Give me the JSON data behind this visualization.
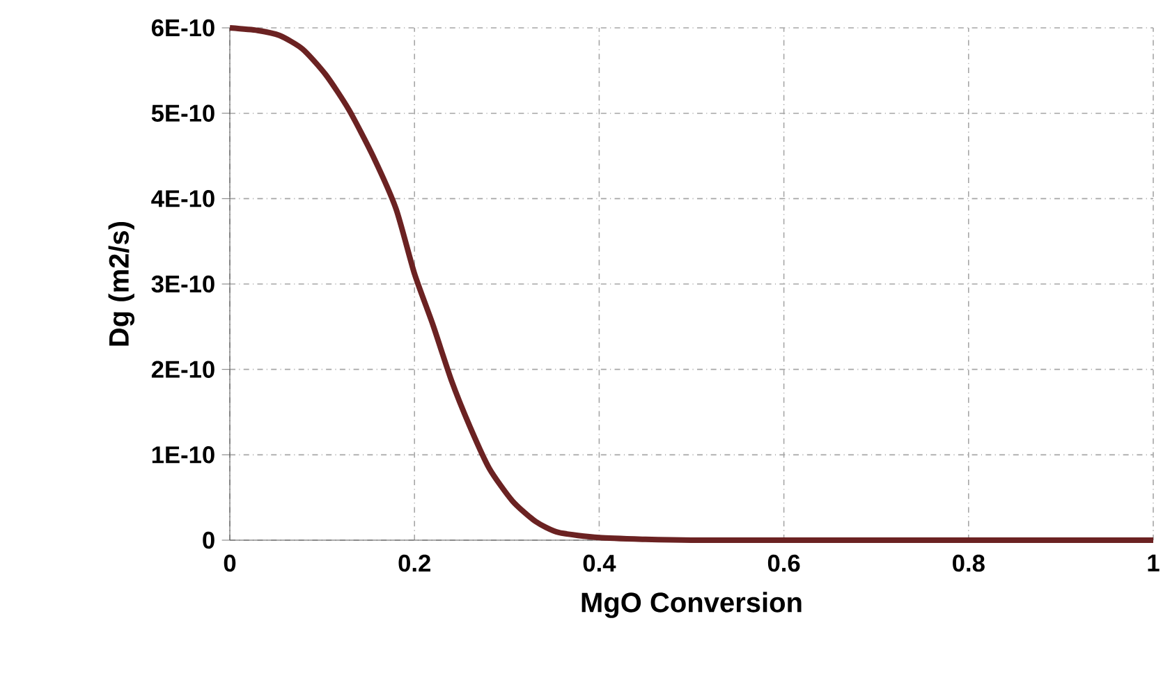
{
  "chart_data": {
    "type": "line",
    "xlabel": "MgO Conversion",
    "ylabel": "Dg (m2/s)",
    "series": [
      {
        "color": "#6b2222",
        "x": [
          0,
          0.03,
          0.054,
          0.079,
          0.104,
          0.129,
          0.155,
          0.18,
          0.2,
          0.22,
          0.24,
          0.26,
          0.281,
          0.306,
          0.331,
          0.356,
          0.4,
          0.45,
          0.5,
          0.6,
          0.8,
          1.0
        ],
        "values": [
          6e-10,
          5.97e-10,
          5.91e-10,
          5.75e-10,
          5.45e-10,
          5.04e-10,
          4.5e-10,
          3.88e-10,
          3.12e-10,
          2.52e-10,
          1.87e-10,
          1.33e-10,
          8.4e-11,
          4.6e-11,
          2.2e-11,
          9e-12,
          3e-12,
          1e-12,
          0,
          0,
          0,
          0
        ]
      }
    ],
    "xlim": [
      0,
      1
    ],
    "xticks": [
      0,
      0.2,
      0.4,
      0.6,
      0.8,
      1
    ],
    "ylim": [
      0,
      6e-10
    ],
    "yticks": [
      0,
      {
        "value": 1e-10,
        "label": "1E-10"
      },
      {
        "value": 2e-10,
        "label": "2E-10"
      },
      {
        "value": 3e-10,
        "label": "3E-10"
      },
      {
        "value": 4e-10,
        "label": "4E-10"
      },
      {
        "value": 5e-10,
        "label": "5E-10"
      },
      {
        "value": 6e-10,
        "label": "6E-10"
      }
    ],
    "grid": true,
    "marker": "none",
    "line_style": "solid"
  }
}
